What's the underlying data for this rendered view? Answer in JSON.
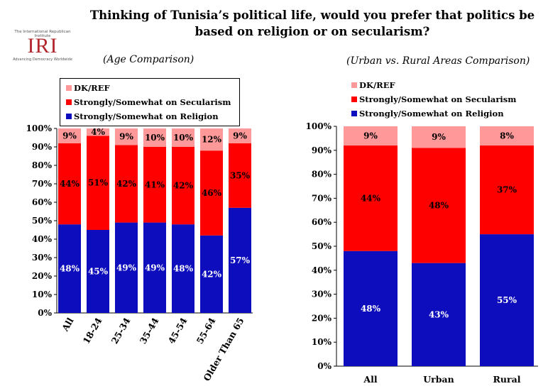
{
  "title_line1": "Thinking of Tunisia’s political life, would you prefer that politics be",
  "title_line2": "based on religion or on secularism?",
  "logo": {
    "org_line": "The International Republican Institute",
    "wordmark": "IRI",
    "tagline": "Advancing Democracy Worldwide"
  },
  "colors": {
    "religion": "#0d0dbd",
    "secularism": "#ff0000",
    "dkref": "#ff9999"
  },
  "chart_data": [
    {
      "type": "bar",
      "stacked": true,
      "subtitle": "(Age Comparison)",
      "categories": [
        "All",
        "18-24",
        "25-34",
        "35-44",
        "45-54",
        "55-64",
        "Older Than 65"
      ],
      "series": [
        {
          "name": "Strongly/Somewhat on Religion",
          "values": [
            48,
            45,
            49,
            49,
            48,
            42,
            57
          ],
          "labels": [
            "48%",
            "45%",
            "49%",
            "49%",
            "48%",
            "42%",
            "57%"
          ]
        },
        {
          "name": "Strongly/Somewhat on Secularism",
          "values": [
            44,
            51,
            42,
            41,
            42,
            46,
            35
          ],
          "labels": [
            "44%",
            "51%",
            "42%",
            "41%",
            "42%",
            "46%",
            "35%"
          ]
        },
        {
          "name": "DK/REF",
          "values": [
            9,
            4,
            9,
            10,
            10,
            12,
            9
          ],
          "labels": [
            "9%",
            "4%",
            "9%",
            "10%",
            "10%",
            "12%",
            "9%"
          ]
        }
      ],
      "legend_order": [
        "DK/REF",
        "Strongly/Somewhat on Secularism",
        "Strongly/Somewhat on Religion"
      ],
      "ylim": [
        0,
        100
      ],
      "yticks": [
        "0%",
        "10%",
        "20%",
        "30%",
        "40%",
        "50%",
        "60%",
        "70%",
        "80%",
        "90%",
        "100%"
      ],
      "legend_position": "top-left",
      "grid": false
    },
    {
      "type": "bar",
      "stacked": true,
      "subtitle": "(Urban vs. Rural Areas Comparison)",
      "categories": [
        "All",
        "Urban",
        "Rural"
      ],
      "series": [
        {
          "name": "Strongly/Somewhat on Religion",
          "values": [
            48,
            43,
            55
          ],
          "labels": [
            "48%",
            "43%",
            "55%"
          ]
        },
        {
          "name": "Strongly/Somewhat on Secularism",
          "values": [
            44,
            48,
            37
          ],
          "labels": [
            "44%",
            "48%",
            "37%"
          ]
        },
        {
          "name": "DK/REF",
          "values": [
            9,
            9,
            8
          ],
          "labels": [
            "9%",
            "9%",
            "8%"
          ]
        }
      ],
      "legend_order": [
        "DK/REF",
        "Strongly/Somewhat on Secularism",
        "Strongly/Somewhat on Religion"
      ],
      "ylim": [
        0,
        100
      ],
      "yticks": [
        "0%",
        "10%",
        "20%",
        "30%",
        "40%",
        "50%",
        "60%",
        "70%",
        "80%",
        "90%",
        "100%"
      ],
      "legend_position": "top-left",
      "grid": false
    }
  ]
}
